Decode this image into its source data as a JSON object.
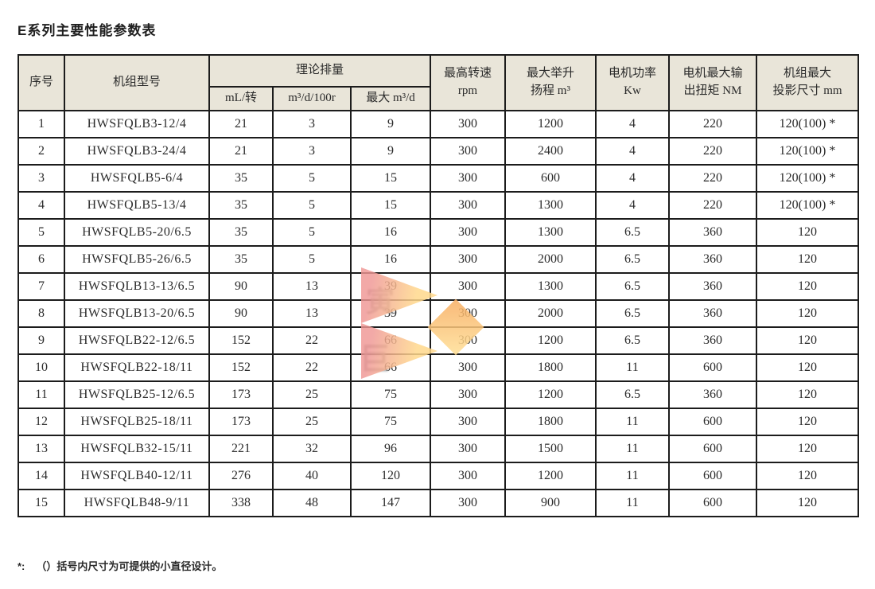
{
  "page": {
    "title": "E系列主要性能参数表",
    "footnote_marker": "*:",
    "footnote_text": "（）括号内尺寸为可提供的小直径设计。"
  },
  "table": {
    "headers": {
      "seq": "序号",
      "model": "机组型号",
      "displacement_group": "理论排量",
      "disp_per_rev": "mL/转",
      "disp_per_100r": "m³/d/100r",
      "disp_max": "最大 m³/d",
      "max_speed": "最高转速\nrpm",
      "max_lift": "最大举升\n扬程 m³",
      "motor_power": "电机功率\nKw",
      "motor_torque": "电机最大输\n出扭矩 NM",
      "max_size": "机组最大\n投影尺寸 mm"
    },
    "rows": [
      [
        "1",
        "HWSFQLB3-12/4",
        "21",
        "3",
        "9",
        "300",
        "1200",
        "4",
        "220",
        "120(100) *"
      ],
      [
        "2",
        "HWSFQLB3-24/4",
        "21",
        "3",
        "9",
        "300",
        "2400",
        "4",
        "220",
        "120(100) *"
      ],
      [
        "3",
        "HWSFQLB5-6/4",
        "35",
        "5",
        "15",
        "300",
        "600",
        "4",
        "220",
        "120(100) *"
      ],
      [
        "4",
        "HWSFQLB5-13/4",
        "35",
        "5",
        "15",
        "300",
        "1300",
        "4",
        "220",
        "120(100) *"
      ],
      [
        "5",
        "HWSFQLB5-20/6.5",
        "35",
        "5",
        "16",
        "300",
        "1300",
        "6.5",
        "360",
        "120"
      ],
      [
        "6",
        "HWSFQLB5-26/6.5",
        "35",
        "5",
        "16",
        "300",
        "2000",
        "6.5",
        "360",
        "120"
      ],
      [
        "7",
        "HWSFQLB13-13/6.5",
        "90",
        "13",
        "39",
        "300",
        "1300",
        "6.5",
        "360",
        "120"
      ],
      [
        "8",
        "HWSFQLB13-20/6.5",
        "90",
        "13",
        "39",
        "300",
        "2000",
        "6.5",
        "360",
        "120"
      ],
      [
        "9",
        "HWSFQLB22-12/6.5",
        "152",
        "22",
        "66",
        "300",
        "1200",
        "6.5",
        "360",
        "120"
      ],
      [
        "10",
        "HWSFQLB22-18/11",
        "152",
        "22",
        "66",
        "300",
        "1800",
        "11",
        "600",
        "120"
      ],
      [
        "11",
        "HWSFQLB25-12/6.5",
        "173",
        "25",
        "75",
        "300",
        "1200",
        "6.5",
        "360",
        "120"
      ],
      [
        "12",
        "HWSFQLB25-18/11",
        "173",
        "25",
        "75",
        "300",
        "1800",
        "11",
        "600",
        "120"
      ],
      [
        "13",
        "HWSFQLB32-15/11",
        "221",
        "32",
        "96",
        "300",
        "1500",
        "11",
        "600",
        "120"
      ],
      [
        "14",
        "HWSFQLB40-12/11",
        "276",
        "40",
        "120",
        "300",
        "1200",
        "11",
        "600",
        "120"
      ],
      [
        "15",
        "HWSFQLB48-9/11",
        "338",
        "48",
        "147",
        "300",
        "900",
        "11",
        "600",
        "120"
      ]
    ]
  },
  "watermark": {
    "glyph_top": "寅",
    "glyph_bottom": "巨",
    "color_pink": "#ef9694",
    "color_yellow": "#ffd88c",
    "color_orange": "#f7ac60"
  }
}
